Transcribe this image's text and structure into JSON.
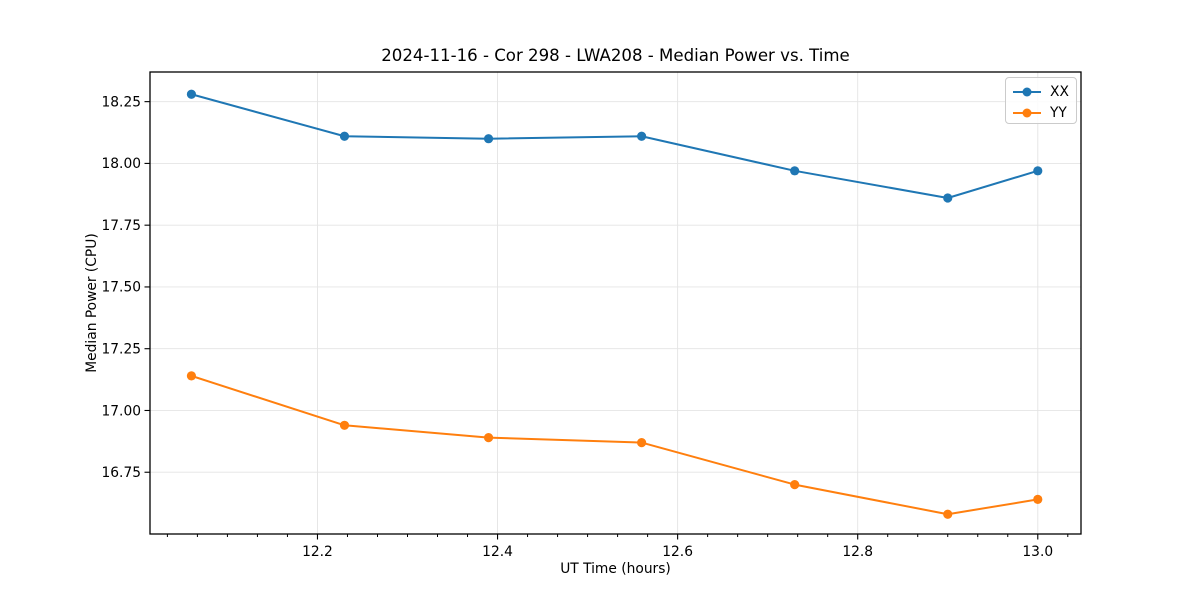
{
  "figure": {
    "title": "2024-11-16 - Cor 298 - LWA208 - Median Power vs. Time",
    "xlabel": "UT Time (hours)",
    "ylabel": "Median Power (CPU)",
    "background": "#ffffff"
  },
  "legend": {
    "position": "upper right",
    "entries": [
      {
        "label": "XX",
        "color": "#1f77b4"
      },
      {
        "label": "YY",
        "color": "#ff7f0e"
      }
    ]
  },
  "chart_data": {
    "type": "line",
    "title": "2024-11-16 - Cor 298 - LWA208 - Median Power vs. Time",
    "xlabel": "UT Time (hours)",
    "ylabel": "Median Power (CPU)",
    "x": [
      12.06,
      12.23,
      12.39,
      12.56,
      12.73,
      12.9,
      13.0
    ],
    "series": [
      {
        "name": "XX",
        "color": "#1f77b4",
        "values": [
          18.28,
          18.11,
          18.1,
          18.11,
          17.97,
          17.86,
          17.97
        ]
      },
      {
        "name": "YY",
        "color": "#ff7f0e",
        "values": [
          17.14,
          16.94,
          16.89,
          16.87,
          16.7,
          16.58,
          16.64
        ]
      }
    ],
    "xlim": [
      12.014,
      13.048
    ],
    "ylim": [
      16.5,
      18.37
    ],
    "x_ticks": [
      12.2,
      12.4,
      12.6,
      12.8,
      13.0
    ],
    "x_tick_labels": [
      "12.2",
      "12.4",
      "12.6",
      "12.8",
      "13.0"
    ],
    "x_minor_step": 0.0333333,
    "y_ticks": [
      16.75,
      17.0,
      17.25,
      17.5,
      17.75,
      18.0,
      18.25
    ],
    "y_tick_labels": [
      "16.75",
      "17.00",
      "17.25",
      "17.50",
      "17.75",
      "18.00",
      "18.25"
    ],
    "grid": true,
    "grid_color": "#e4e4e4",
    "axis_color": "#000000",
    "marker": "o",
    "legend_position": "upper right"
  }
}
